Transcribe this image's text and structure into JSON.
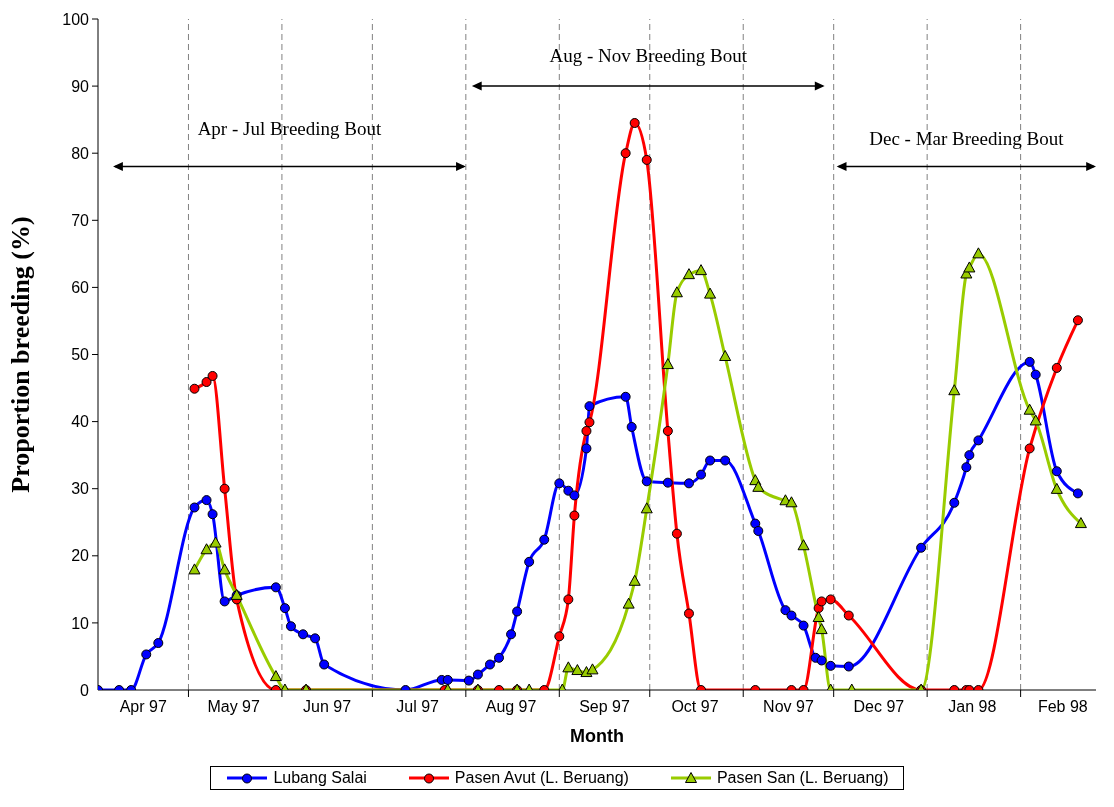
{
  "chart_data": {
    "type": "line",
    "xlabel": "Month",
    "ylabel": "Proportion breeding (%)",
    "xlim": [
      "1997-04-01",
      "1998-02-26"
    ],
    "xticks": [
      {
        "value": "1997-05-01",
        "label": null
      },
      {
        "value": "1997-06-01",
        "label": null
      },
      {
        "value": "1997-07-01",
        "label": null
      },
      {
        "value": "1997-08-01",
        "label": null
      },
      {
        "value": "1997-09-01",
        "label": null
      },
      {
        "value": "1997-10-01",
        "label": null
      },
      {
        "value": "1997-11-01",
        "label": null
      },
      {
        "value": "1997-12-01",
        "label": null
      },
      {
        "value": "1998-01-01",
        "label": null
      },
      {
        "value": "1998-02-01",
        "label": null
      },
      {
        "value": "1997-04-16",
        "label": "Apr 97"
      },
      {
        "value": "1997-05-16",
        "label": "May 97"
      },
      {
        "value": "1997-06-16",
        "label": "Jun 97"
      },
      {
        "value": "1997-07-16",
        "label": "Jul 97"
      },
      {
        "value": "1997-08-16",
        "label": "Aug 97"
      },
      {
        "value": "1997-09-16",
        "label": "Sep 97"
      },
      {
        "value": "1997-10-16",
        "label": "Oct 97"
      },
      {
        "value": "1997-11-16",
        "label": "Nov 97"
      },
      {
        "value": "1997-12-16",
        "label": "Dec 97"
      },
      {
        "value": "1998-01-16",
        "label": "Jan 98"
      },
      {
        "value": "1998-02-15",
        "label": "Feb 98"
      }
    ],
    "ylim": [
      0,
      100
    ],
    "yticks": [
      0,
      10,
      20,
      30,
      40,
      50,
      60,
      70,
      80,
      90,
      100
    ],
    "legend": "bottom",
    "line_style": "solid",
    "ref_lines": [
      {
        "axis": "x",
        "value": "1997-05-01",
        "color": "#808080",
        "line_style": "dashed"
      },
      {
        "axis": "x",
        "value": "1997-06-01",
        "color": "#808080",
        "line_style": "dashed"
      },
      {
        "axis": "x",
        "value": "1997-07-01",
        "color": "#808080",
        "line_style": "dashed"
      },
      {
        "axis": "x",
        "value": "1997-08-01",
        "color": "#808080",
        "line_style": "dashed"
      },
      {
        "axis": "x",
        "value": "1997-09-01",
        "color": "#808080",
        "line_style": "dashed"
      },
      {
        "axis": "x",
        "value": "1997-10-01",
        "color": "#808080",
        "line_style": "dashed"
      },
      {
        "axis": "x",
        "value": "1997-11-01",
        "color": "#808080",
        "line_style": "dashed"
      },
      {
        "axis": "x",
        "value": "1997-12-01",
        "color": "#808080",
        "line_style": "dashed"
      },
      {
        "axis": "x",
        "value": "1998-01-01",
        "color": "#808080",
        "line_style": "dashed"
      },
      {
        "axis": "x",
        "value": "1998-02-01",
        "color": "#808080",
        "line_style": "dashed"
      }
    ],
    "annotations": [
      "Apr - Jul Breeding Bout",
      "Aug - Nov Breeding Bout",
      "Dec - Mar Breeding Bout"
    ],
    "series": [
      {
        "name": "Lubang Salai",
        "color": "#0000ff",
        "marker": "circle",
        "x": [
          "1997-04-01",
          "1997-04-08",
          "1997-04-12",
          "1997-04-17",
          "1997-04-21",
          "1997-05-03",
          "1997-05-07",
          "1997-05-09",
          "1997-05-13",
          "1997-05-17",
          "1997-05-30",
          "1997-06-02",
          "1997-06-04",
          "1997-06-08",
          "1997-06-12",
          "1997-06-15",
          "1997-07-12",
          "1997-07-24",
          "1997-07-26",
          "1997-08-02",
          "1997-08-05",
          "1997-08-09",
          "1997-08-12",
          "1997-08-16",
          "1997-08-18",
          "1997-08-22",
          "1997-08-27",
          "1997-09-01",
          "1997-09-04",
          "1997-09-06",
          "1997-09-10",
          "1997-09-11",
          "1997-09-23",
          "1997-09-25",
          "1997-09-30",
          "1997-10-07",
          "1997-10-14",
          "1997-10-18",
          "1997-10-21",
          "1997-10-26",
          "1997-11-05",
          "1997-11-06",
          "1997-11-15",
          "1997-11-17",
          "1997-11-21",
          "1997-11-25",
          "1997-11-27",
          "1997-11-30",
          "1997-12-06",
          "1997-12-30",
          "1998-01-10",
          "1998-01-14",
          "1998-01-15",
          "1998-01-18",
          "1998-02-04",
          "1998-02-06",
          "1998-02-13",
          "1998-02-20"
        ],
        "values": [
          0,
          0,
          0,
          5.3,
          7,
          27.2,
          28.3,
          26.2,
          13.2,
          14.1,
          15.3,
          12.2,
          9.5,
          8.3,
          7.7,
          3.8,
          0,
          1.5,
          1.5,
          1.4,
          2.3,
          3.8,
          4.8,
          8.3,
          11.7,
          19.1,
          22.4,
          30.8,
          29.7,
          29,
          36,
          42.3,
          43.7,
          39.2,
          31.1,
          30.9,
          30.8,
          32.1,
          34.2,
          34.2,
          24.8,
          23.7,
          11.9,
          11.1,
          9.6,
          4.8,
          4.4,
          3.6,
          3.5,
          21.2,
          27.9,
          33.2,
          35,
          37.2,
          48.9,
          47,
          32.6,
          29.3
        ]
      },
      {
        "name": "Pasen Avut (L. Beruang)",
        "color": "#ff0000",
        "marker": "circle",
        "x": [
          "1997-05-03",
          "1997-05-07",
          "1997-05-09",
          "1997-05-13",
          "1997-05-17",
          "1997-05-30",
          "1997-06-09",
          "1997-07-25",
          "1997-08-05",
          "1997-08-12",
          "1997-08-18",
          "1997-08-27",
          "1997-09-01",
          "1997-09-04",
          "1997-09-06",
          "1997-09-10",
          "1997-09-11",
          "1997-09-23",
          "1997-09-26",
          "1997-09-30",
          "1997-10-07",
          "1997-10-10",
          "1997-10-14",
          "1997-10-18",
          "1997-11-05",
          "1997-11-17",
          "1997-11-21",
          "1997-11-26",
          "1997-11-27",
          "1997-11-30",
          "1997-12-06",
          "1997-12-30",
          "1998-01-10",
          "1998-01-14",
          "1998-01-15",
          "1998-01-18",
          "1998-02-04",
          "1998-02-13",
          "1998-02-20"
        ],
        "values": [
          44.9,
          45.9,
          46.8,
          30,
          13.5,
          0,
          0,
          0,
          0,
          0,
          0,
          0,
          8,
          13.5,
          26,
          38.6,
          39.9,
          80,
          84.5,
          79,
          38.6,
          23.3,
          11.4,
          0,
          0,
          0,
          0,
          12.2,
          13.2,
          13.5,
          11.1,
          0,
          0,
          0,
          0,
          0,
          36,
          48,
          55.1
        ]
      },
      {
        "name": "Pasen San (L. Beruang)",
        "color": "#99cc00",
        "marker": "triangle",
        "x": [
          "1997-05-03",
          "1997-05-07",
          "1997-05-10",
          "1997-05-13",
          "1997-05-17",
          "1997-05-30",
          "1997-06-02",
          "1997-06-09",
          "1997-07-26",
          "1997-08-05",
          "1997-08-18",
          "1997-08-22",
          "1997-09-02",
          "1997-09-04",
          "1997-09-07",
          "1997-09-10",
          "1997-09-12",
          "1997-09-24",
          "1997-09-26",
          "1997-09-30",
          "1997-10-07",
          "1997-10-10",
          "1997-10-14",
          "1997-10-18",
          "1997-10-21",
          "1997-10-26",
          "1997-11-05",
          "1997-11-06",
          "1997-11-15",
          "1997-11-17",
          "1997-11-21",
          "1997-11-26",
          "1997-11-27",
          "1997-11-30",
          "1997-12-07",
          "1997-12-30",
          "1998-01-10",
          "1998-01-14",
          "1998-01-15",
          "1998-01-18",
          "1998-02-04",
          "1998-02-06",
          "1998-02-13",
          "1998-02-21"
        ],
        "values": [
          17.9,
          20.9,
          21.9,
          17.9,
          14.1,
          2,
          0,
          0,
          0,
          0,
          0,
          0,
          0,
          3.3,
          2.9,
          2.6,
          3,
          12.8,
          16.2,
          27,
          48.5,
          59.2,
          61.9,
          62.5,
          59,
          49.7,
          31.2,
          30.2,
          28.2,
          27.9,
          21.5,
          10.8,
          9,
          0,
          0,
          0,
          44.6,
          62,
          62.9,
          65,
          41.7,
          40.1,
          29.9,
          24.8
        ]
      }
    ]
  }
}
